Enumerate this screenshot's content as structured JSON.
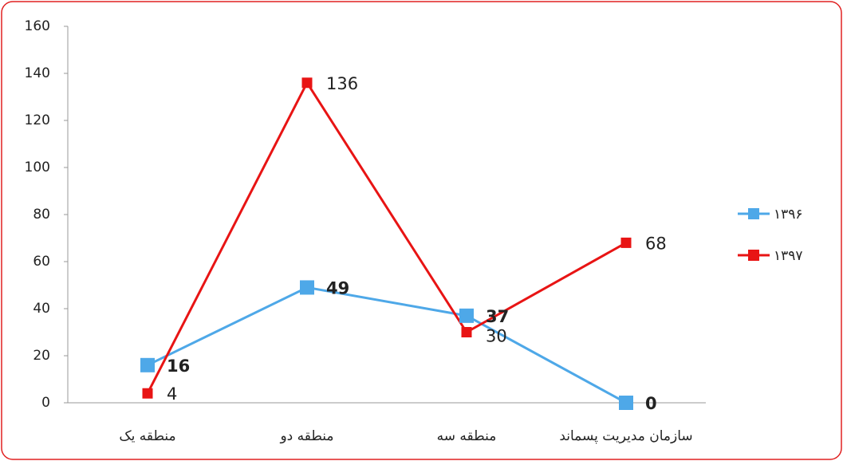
{
  "chart_data": {
    "type": "line",
    "categories": [
      "منطقه یک",
      "منطقه دو",
      "منطقه سه",
      "سازمان مدیریت پسماند"
    ],
    "series": [
      {
        "name": "۱۳۹۶",
        "color": "#4ea8e8",
        "values": [
          16,
          49,
          37,
          0
        ]
      },
      {
        "name": "۱۳۹۷",
        "color": "#e81414",
        "values": [
          4,
          136,
          30,
          68
        ]
      }
    ],
    "ylim": [
      0,
      160
    ],
    "yticks": [
      0,
      20,
      40,
      60,
      80,
      100,
      120,
      140,
      160
    ],
    "grid": false,
    "legend": "right"
  }
}
